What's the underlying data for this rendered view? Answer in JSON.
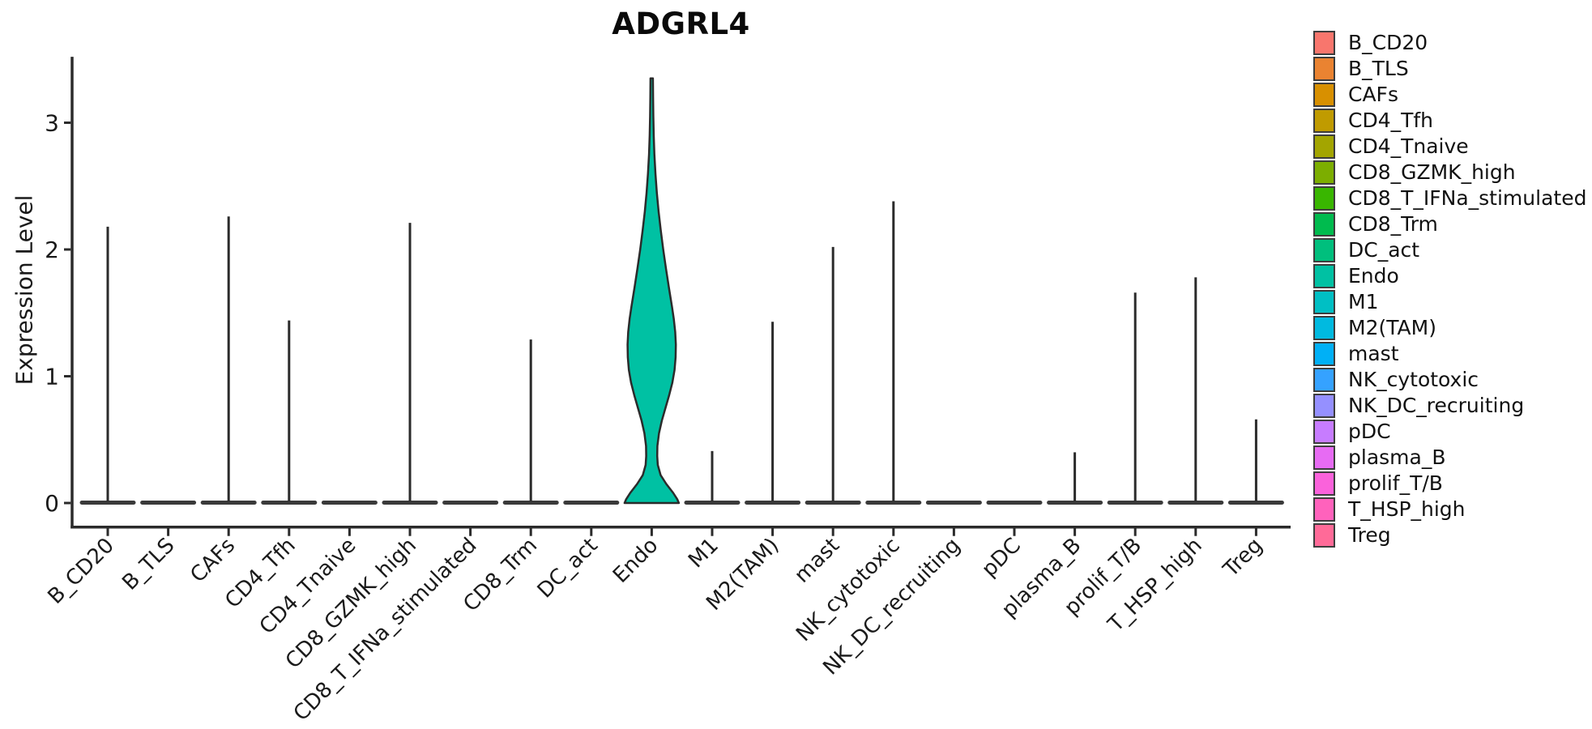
{
  "chart_data": {
    "type": "violin",
    "title": "ADGRL4",
    "ylabel": "Expression Level",
    "xlabel": "",
    "categories": [
      "B_CD20",
      "B_TLS",
      "CAFs",
      "CD4_Tfh",
      "CD4_Tnaive",
      "CD8_GZMK_high",
      "CD8_T_IFNa_stimulated",
      "CD8_Trm",
      "DC_act",
      "Endo",
      "M1",
      "M2(TAM)",
      "mast",
      "NK_cytotoxic",
      "NK_DC_recruiting",
      "pDC",
      "plasma_B",
      "prolif_T/B",
      "T_HSP_high",
      "Treg"
    ],
    "colors": [
      "#F8766D",
      "#EA8331",
      "#D89000",
      "#C09B00",
      "#A3A500",
      "#7CAE00",
      "#39B600",
      "#00BB4E",
      "#00BF7D",
      "#00C1A3",
      "#00BFC4",
      "#00BAE0",
      "#00B0F6",
      "#35A2FF",
      "#9590FF",
      "#C77CFF",
      "#E76BF3",
      "#FA62DB",
      "#FF62BC",
      "#FF6A98"
    ],
    "max_expression": [
      2.18,
      0,
      2.26,
      1.44,
      0,
      2.21,
      0,
      1.29,
      0,
      3.35,
      0.41,
      1.43,
      2.02,
      2.38,
      0,
      0,
      0.4,
      1.66,
      1.78,
      0.66
    ],
    "highlight_violin": {
      "category": "Endo",
      "max": 3.35,
      "profile": [
        [
          3.35,
          1.5
        ],
        [
          3.2,
          1.7
        ],
        [
          3.05,
          2.0
        ],
        [
          2.9,
          2.5
        ],
        [
          2.75,
          3.3
        ],
        [
          2.6,
          4.6
        ],
        [
          2.45,
          6.3
        ],
        [
          2.3,
          8.5
        ],
        [
          2.15,
          11.2
        ],
        [
          2.0,
          14.2
        ],
        [
          1.85,
          17.6
        ],
        [
          1.7,
          21.2
        ],
        [
          1.55,
          25.0
        ],
        [
          1.45,
          27.3
        ],
        [
          1.35,
          29.0
        ],
        [
          1.25,
          29.8
        ],
        [
          1.15,
          29.5
        ],
        [
          1.05,
          28.2
        ],
        [
          0.95,
          25.5
        ],
        [
          0.85,
          21.5
        ],
        [
          0.75,
          17.0
        ],
        [
          0.65,
          12.5
        ],
        [
          0.55,
          9.0
        ],
        [
          0.45,
          7.0
        ],
        [
          0.37,
          6.8
        ],
        [
          0.3,
          7.5
        ],
        [
          0.22,
          11.0
        ],
        [
          0.15,
          18.0
        ],
        [
          0.08,
          26.5
        ],
        [
          0.03,
          31.5
        ],
        [
          0.0,
          33.5
        ]
      ]
    },
    "y_ticks": [
      0,
      1,
      2,
      3
    ],
    "ylim": [
      -0.19,
      3.52
    ],
    "grid": false,
    "legend_position": "right",
    "axis_color": "#2b2b2b",
    "flat_base_color": "#3a3a3a",
    "text_color": "#1a1a1a"
  }
}
